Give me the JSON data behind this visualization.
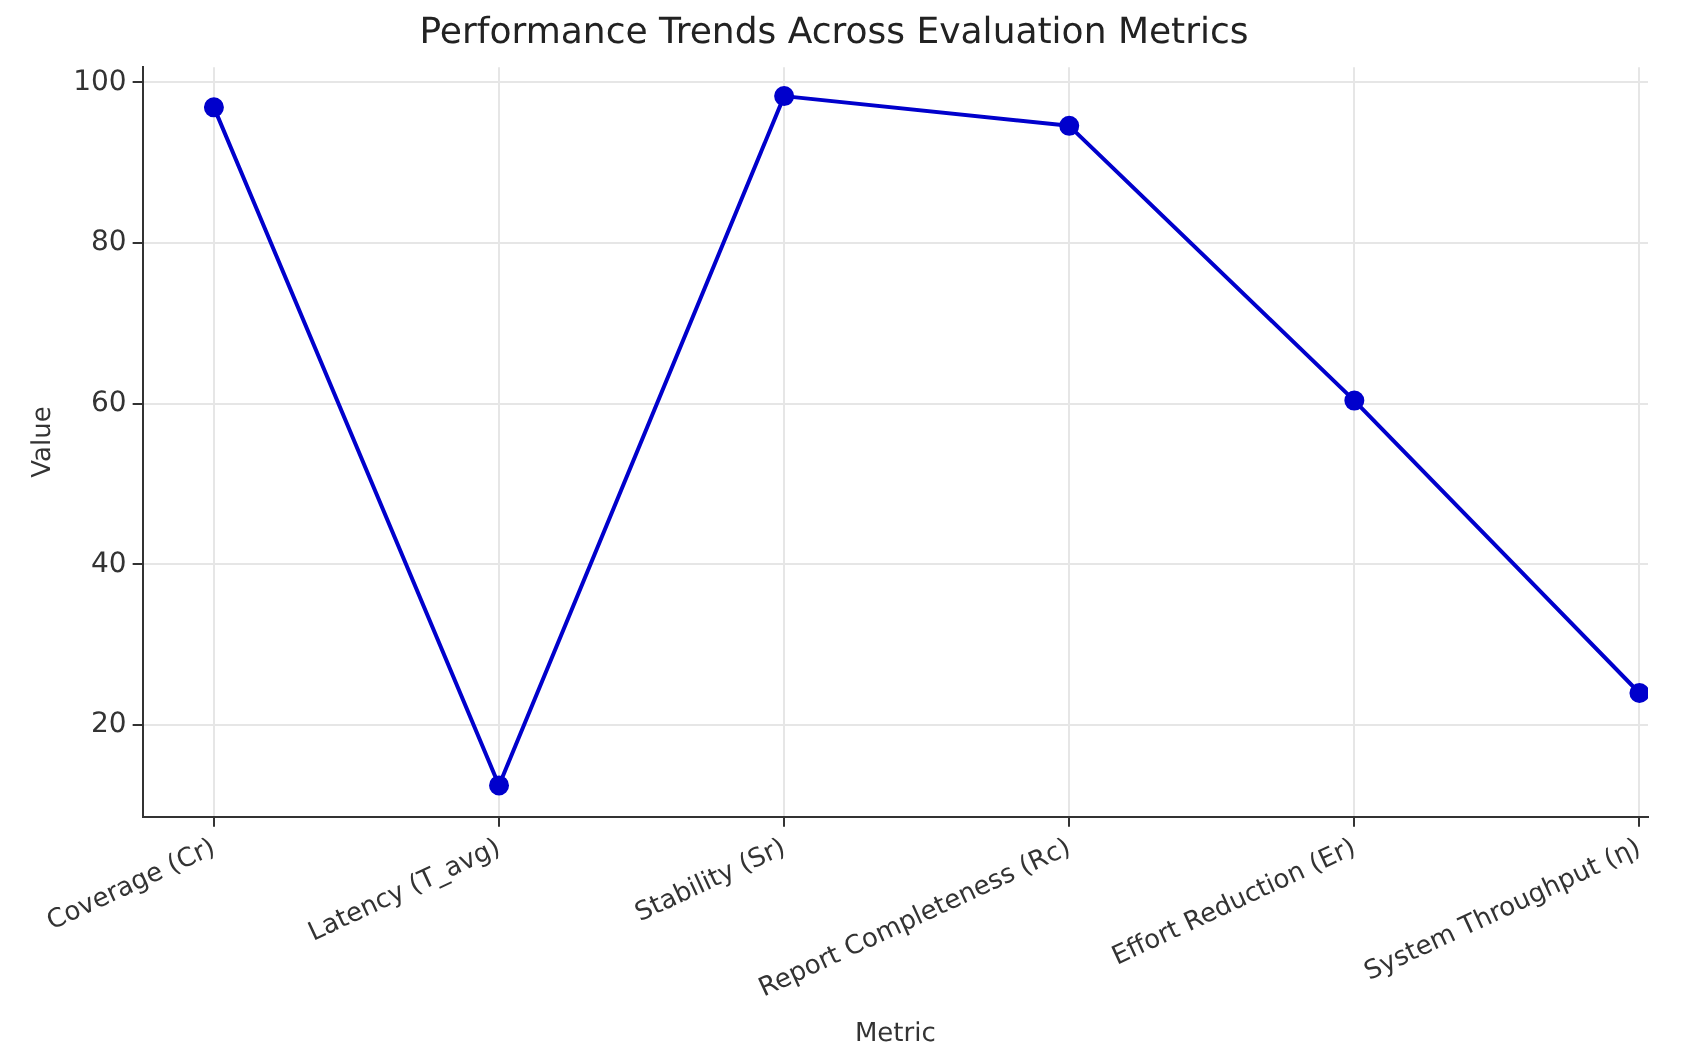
{
  "chart_data": {
    "type": "line",
    "title": "Performance Trends Across Evaluation Metrics",
    "xlabel": "Metric",
    "ylabel": "Value",
    "categories": [
      "Coverage (Cr)",
      "Latency (T_avg)",
      "Stability (Sr)",
      "Report Completeness (Rc)",
      "Effort Reduction (Er)",
      "System Throughput (η)"
    ],
    "series": [
      {
        "color": "#0000cc",
        "values": [
          96.9,
          12.5,
          98.3,
          94.6,
          60.4,
          24.0
        ]
      }
    ],
    "ylim": [
      8.6,
      101.9
    ],
    "yticks": [
      20,
      40,
      60,
      80,
      100
    ],
    "grid": true,
    "legend": false,
    "marker": "circle",
    "line_style": "solid"
  }
}
